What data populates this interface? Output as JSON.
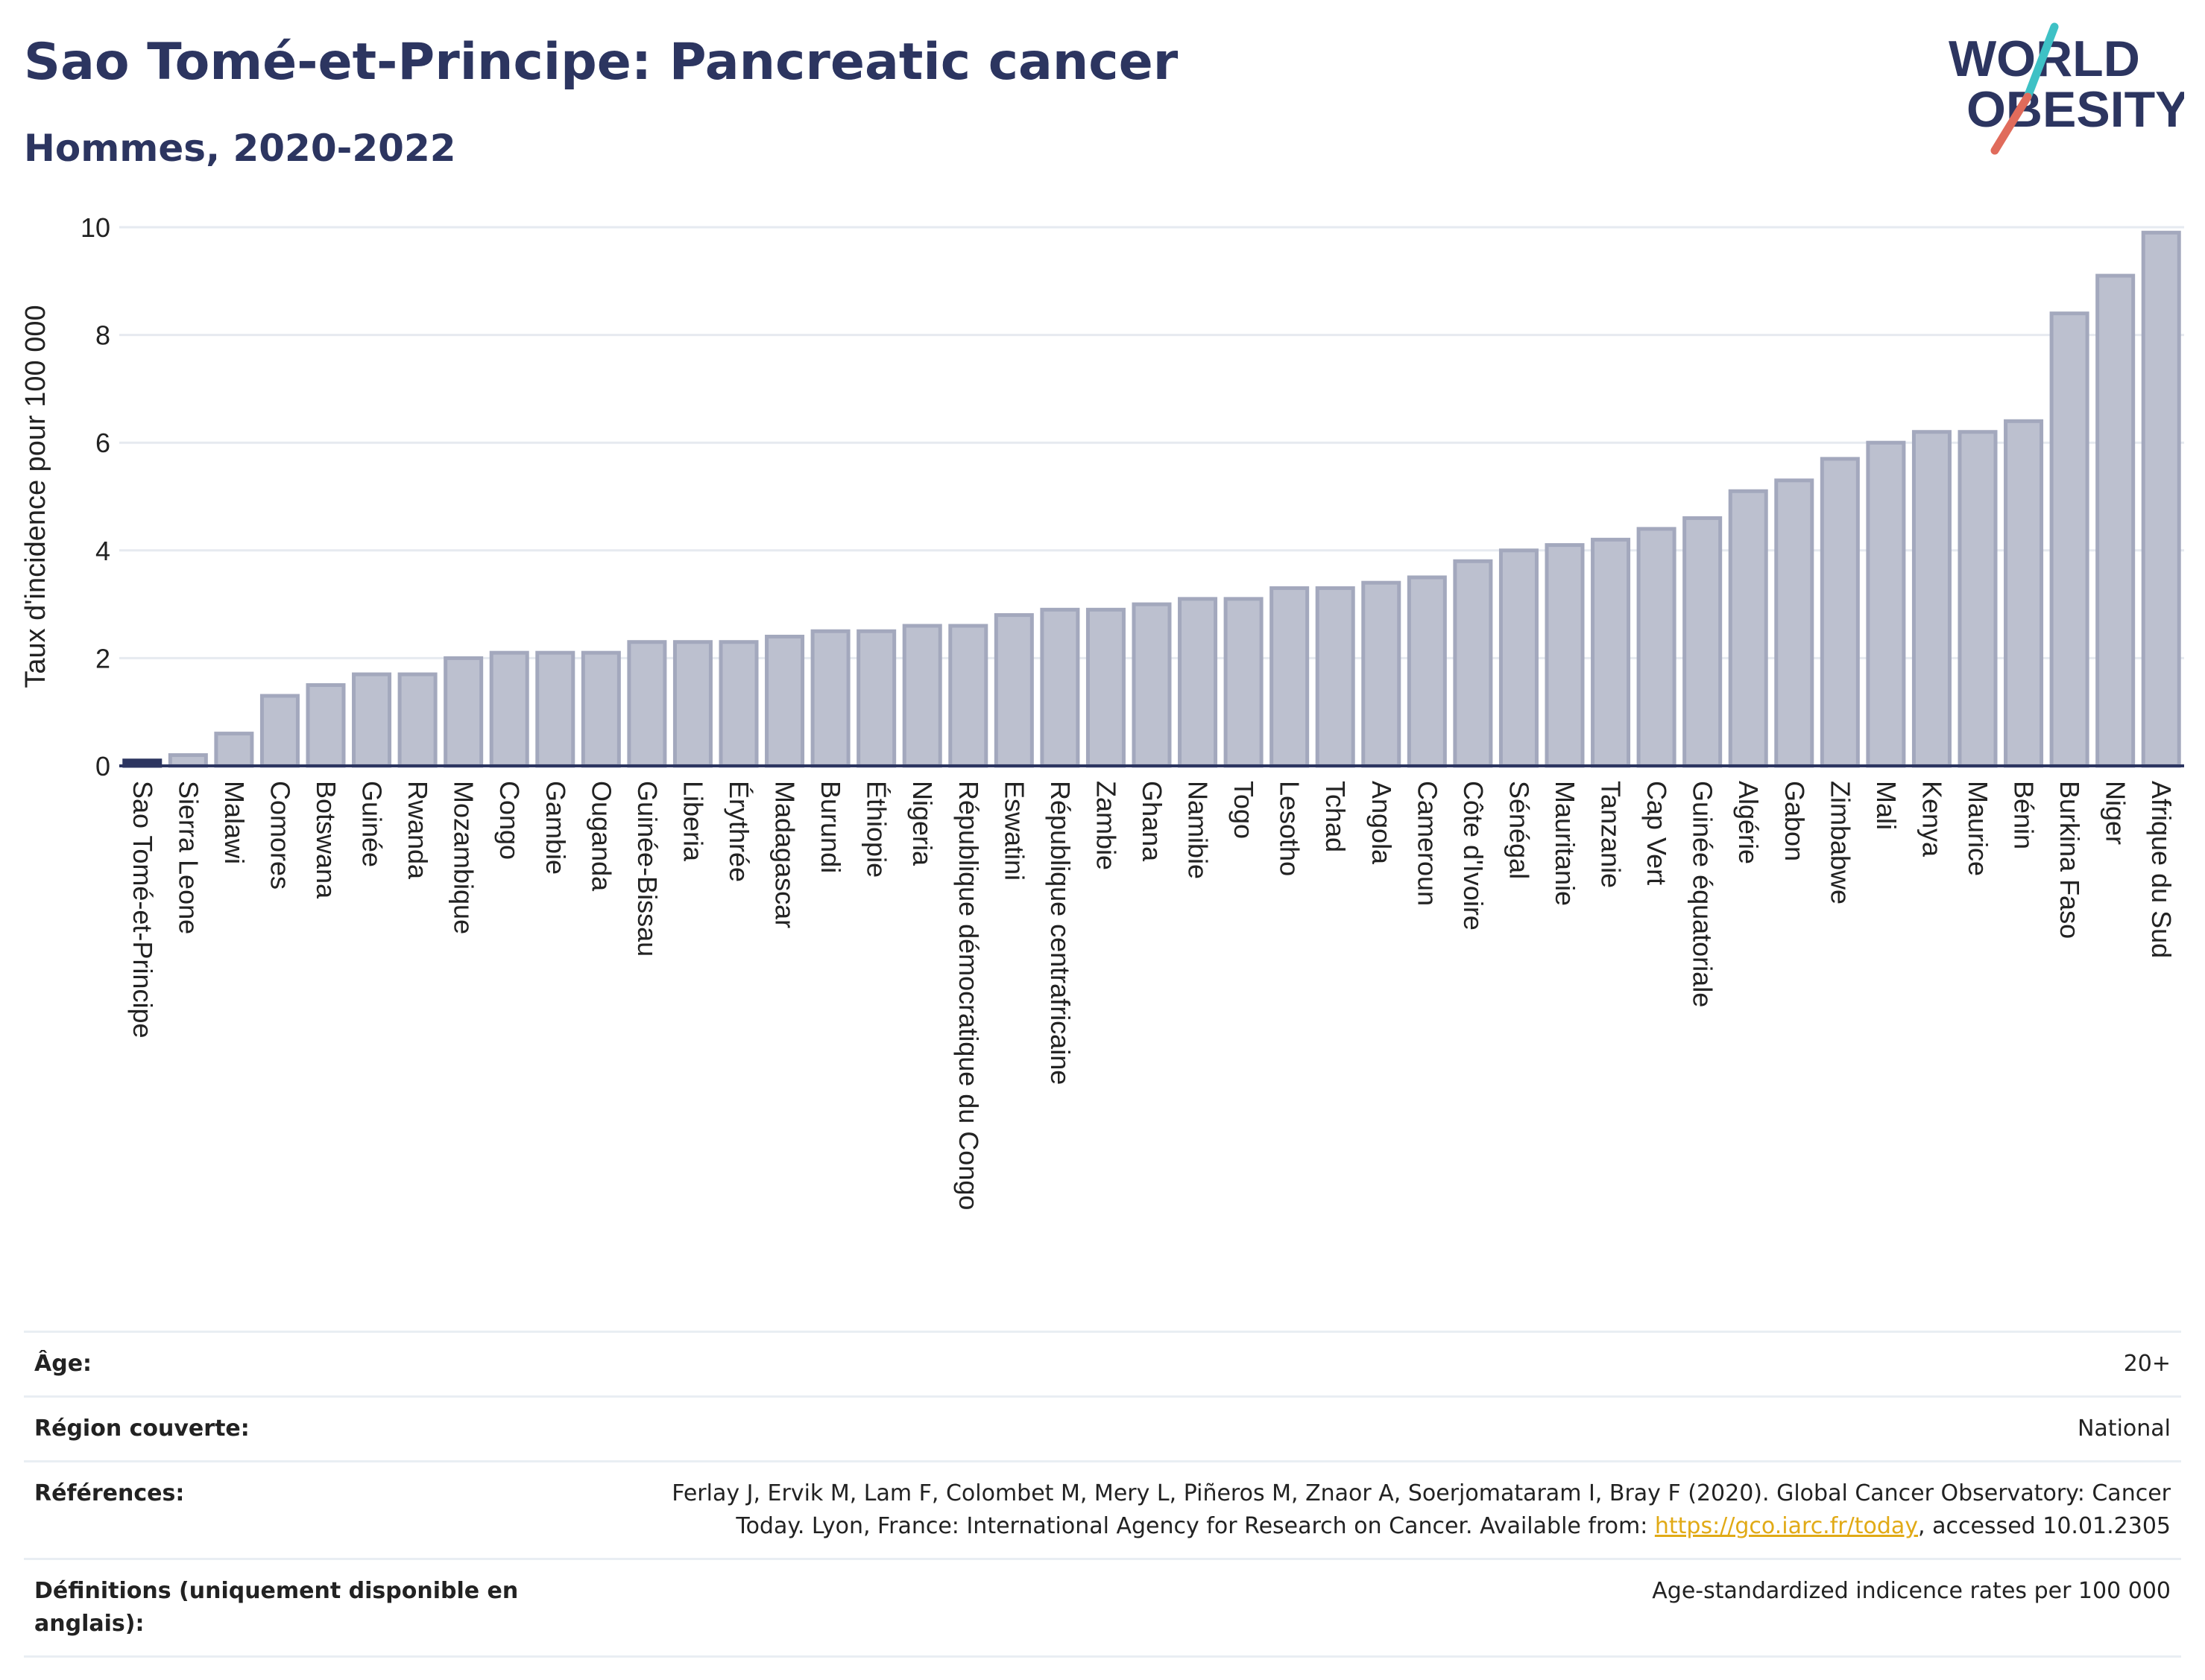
{
  "header": {
    "title": "Sao Tomé-et-Principe: Pancreatic cancer",
    "subtitle": "Hommes, 2020-2022"
  },
  "logo": {
    "line1": "WORLD",
    "line2": "OBESITY"
  },
  "colors": {
    "title": "#2c3560",
    "bar_fill": "#bcc0cf",
    "bar_stroke": "#a3a8bd",
    "highlight": "#2c3560",
    "grid": "#e6eaf0",
    "link": "#e1aa16",
    "logo_teal": "#3ec1c5",
    "logo_red": "#e06b5b"
  },
  "chart_data": {
    "type": "bar",
    "ylabel": "Taux d'incidence pour 100 000",
    "ylim": [
      0,
      10
    ],
    "yticks": [
      0,
      2,
      4,
      6,
      8,
      10
    ],
    "grid": true,
    "highlight_category": "Sao Tomé-et-Principe",
    "categories": [
      "Sao Tomé-et-Principe",
      "Sierra Leone",
      "Malawi",
      "Comores",
      "Botswana",
      "Guinée",
      "Rwanda",
      "Mozambique",
      "Congo",
      "Gambie",
      "Ouganda",
      "Guinée-Bissau",
      "Liberia",
      "Érythrée",
      "Madagascar",
      "Burundi",
      "Éthiopie",
      "Nigeria",
      "République démocratique du Congo",
      "Eswatini",
      "République centrafricaine",
      "Zambie",
      "Ghana",
      "Namibie",
      "Togo",
      "Lesotho",
      "Tchad",
      "Angola",
      "Cameroun",
      "Côte d'Ivoire",
      "Sénégal",
      "Mauritanie",
      "Tanzanie",
      "Cap Vert",
      "Guinée équatoriale",
      "Algérie",
      "Gabon",
      "Zimbabwe",
      "Mali",
      "Kenya",
      "Maurice",
      "Bénin",
      "Burkina Faso",
      "Niger",
      "Afrique du Sud"
    ],
    "values": [
      0.1,
      0.2,
      0.6,
      1.3,
      1.5,
      1.7,
      1.7,
      2.0,
      2.1,
      2.1,
      2.1,
      2.3,
      2.3,
      2.3,
      2.4,
      2.5,
      2.5,
      2.6,
      2.6,
      2.8,
      2.9,
      2.9,
      3.0,
      3.1,
      3.1,
      3.3,
      3.3,
      3.4,
      3.5,
      3.8,
      4.0,
      4.1,
      4.2,
      4.4,
      4.6,
      5.1,
      5.3,
      5.7,
      6.0,
      6.2,
      6.2,
      6.4,
      8.4,
      9.1,
      9.9
    ]
  },
  "meta": {
    "age_label": "Âge:",
    "age_value": "20+",
    "region_label": "Région couverte:",
    "region_value": "National",
    "ref_label": "Références:",
    "ref_line1": "Ferlay J, Ervik M, Lam F, Colombet M, Mery L, Piñeros M, Znaor A, Soerjomataram I, Bray F (2020). Global Cancer Observatory: Cancer",
    "ref_line2_pre": "Today. Lyon, France: International Agency for Research on Cancer. Available from: ",
    "ref_link": "https://gco.iarc.fr/today",
    "ref_line2_post": ", accessed 10.01.2305",
    "def_label": "Définitions (uniquement disponible en anglais):",
    "def_value": "Age-standardized indicence rates per 100 000"
  }
}
